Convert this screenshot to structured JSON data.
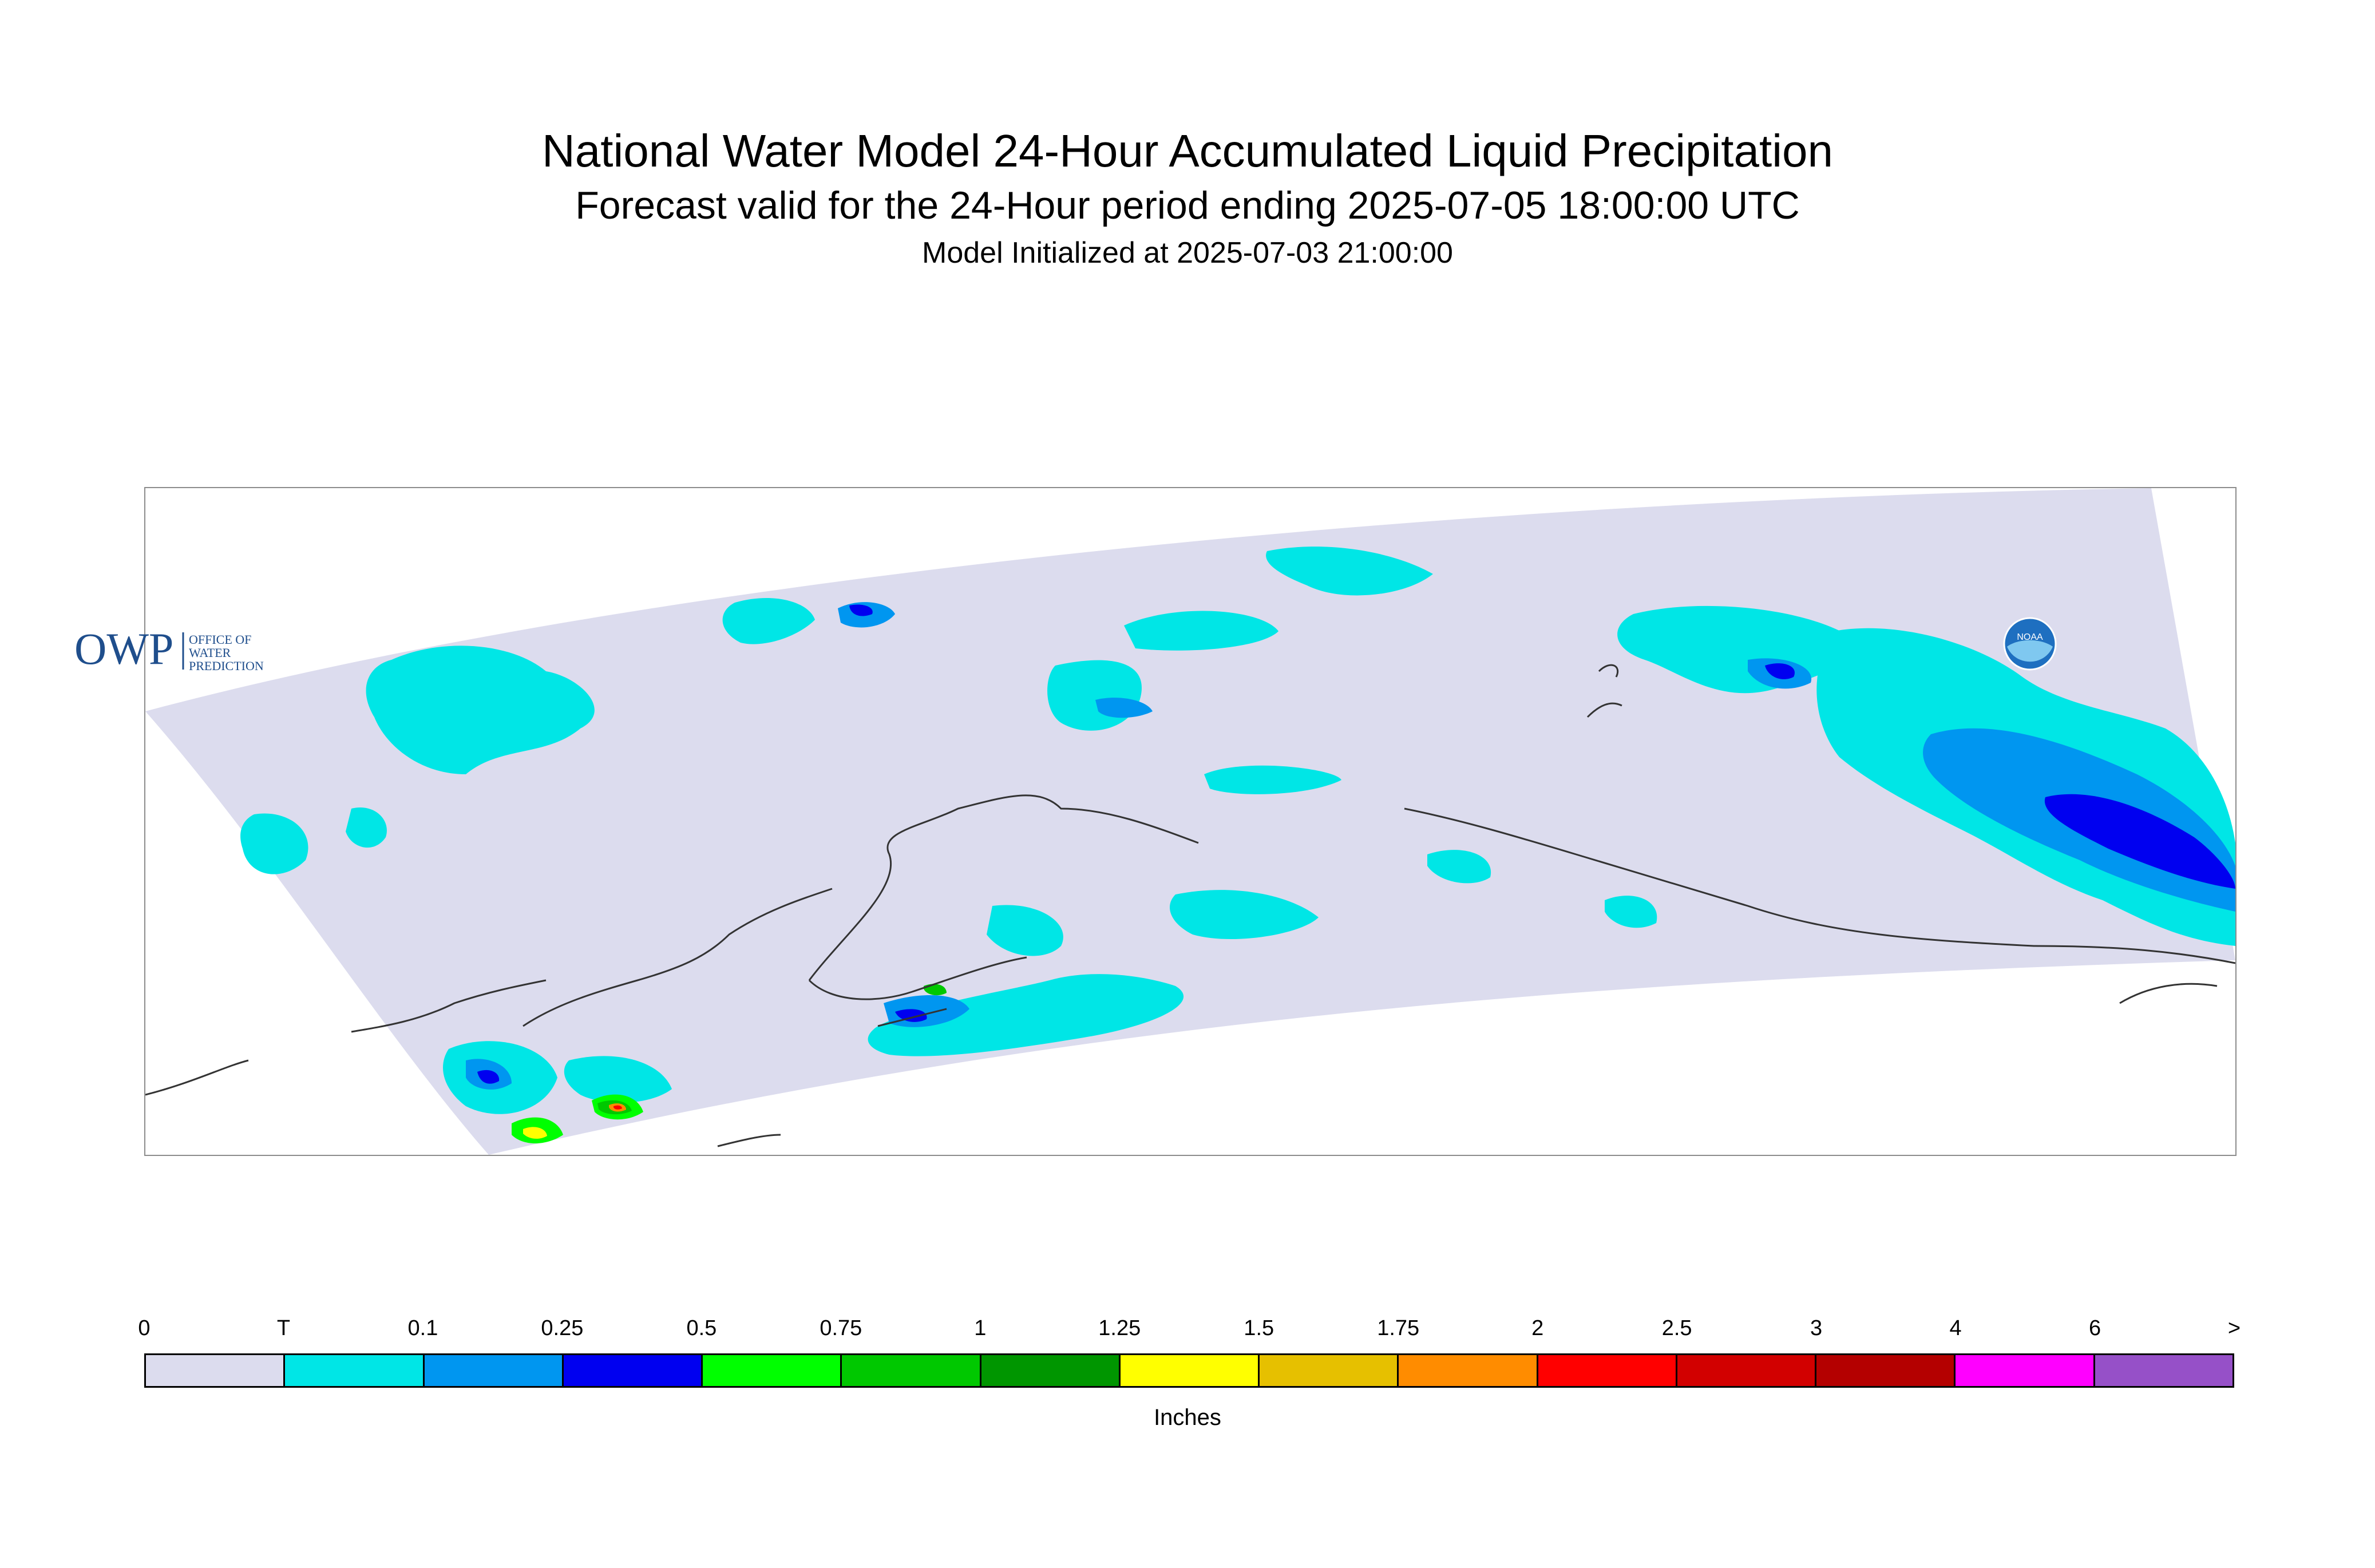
{
  "header": {
    "title": "National Water Model 24-Hour Accumulated Liquid Precipitation",
    "subtitle": "Forecast valid for the 24-Hour period ending 2025-07-05 18:00:00 UTC",
    "init_line": "Model Initialized at 2025-07-03 21:00:00"
  },
  "logos": {
    "owp_main": "OWP",
    "owp_line1": "OFFICE OF",
    "owp_line2": "WATER",
    "owp_line3": "PREDICTION",
    "noaa": "NOAA"
  },
  "legend": {
    "unit_label": "Inches",
    "tick_labels": [
      "0",
      "T",
      "0.1",
      "0.25",
      "0.5",
      "0.75",
      "1",
      "1.25",
      "1.5",
      "1.75",
      "2",
      "2.5",
      "3",
      "4",
      "6",
      ">"
    ],
    "colors": [
      "#dcdcee",
      "#00e6e6",
      "#0096f0",
      "#0000f0",
      "#00ff00",
      "#00c800",
      "#009600",
      "#ffff00",
      "#e6c000",
      "#ff8c00",
      "#ff0000",
      "#d20000",
      "#b40000",
      "#ff00ff",
      "#9650c8"
    ]
  },
  "map": {
    "domain_color": "#dcdcee",
    "coast_color": "#333333"
  }
}
